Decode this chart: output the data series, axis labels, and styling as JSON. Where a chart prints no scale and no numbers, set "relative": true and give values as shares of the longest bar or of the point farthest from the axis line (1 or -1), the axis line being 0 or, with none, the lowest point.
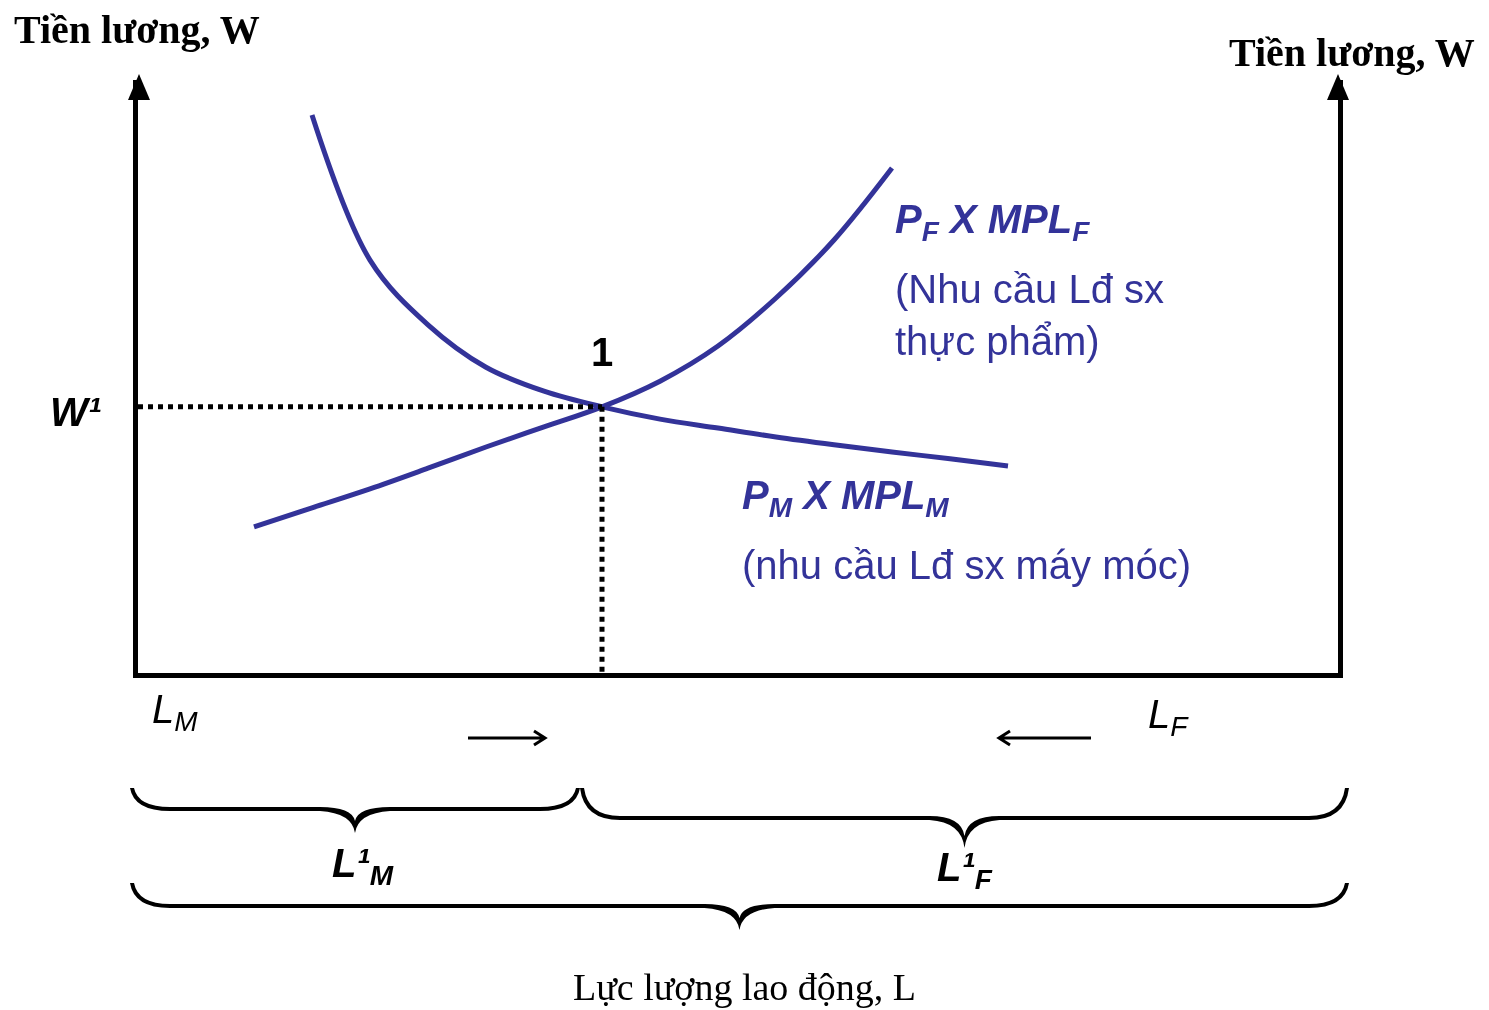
{
  "chart_data": {
    "type": "line",
    "relative": true,
    "title": null,
    "categories": [
      null,
      null,
      null,
      null,
      null,
      null,
      null,
      null,
      null,
      null,
      null,
      null,
      null,
      null,
      null,
      null,
      null,
      null,
      null,
      null,
      null
    ],
    "ylabel": "Tiền lương, W",
    "y2label": "Tiền lương, W",
    "series": [
      {
        "name": "P$_{F}$ X MPL$_{F}$",
        "color": "#333399",
        "values": [
          null,
          null,
          0.262,
          0.296,
          0.33,
          0.367,
          0.405,
          0.441,
          0.477,
          0.523,
          0.586,
          0.672,
          0.776,
          0.905,
          null,
          null,
          null,
          null,
          null,
          null,
          null
        ]
      },
      {
        "name": "P$_{M}$ X MPL$_{M}$",
        "color": "#333399",
        "values": [
          null,
          null,
          null,
          1.0,
          0.74,
          0.624,
          0.548,
          0.505,
          0.477,
          0.455,
          0.439,
          0.423,
          0.409,
          0.396,
          0.384,
          0.371,
          null,
          null,
          null,
          null,
          null
        ]
      },
      {
        "color": "#000000",
        "line_style": "dotted",
        "values": [
          0.477,
          0.477,
          0.477,
          0.477,
          0.477,
          0.477,
          0.477,
          0.477,
          0.477,
          null,
          null,
          null,
          null,
          null,
          null,
          null,
          null,
          null,
          null,
          null,
          null
        ]
      }
    ],
    "annotations": [
      "(Nhu cầu Lđ sx thực phẩm)",
      "(nhu cầu Lđ sx máy móc)",
      "1",
      "W¹",
      "L$_{M}$",
      "L$_{F}$",
      "L¹$_{M}$",
      "L¹$_{F}$",
      "Lực lượng lao động, L"
    ]
  }
}
